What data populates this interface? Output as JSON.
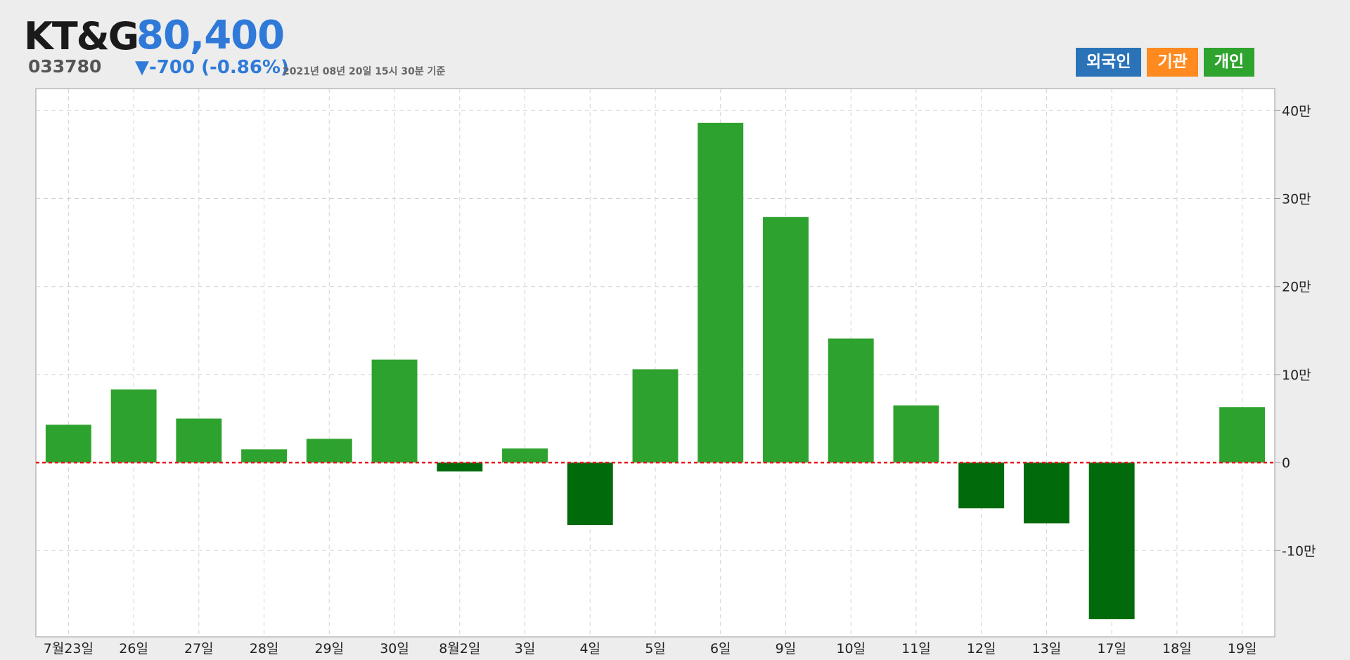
{
  "header": {
    "name": "KT&G",
    "price": "80,400",
    "code": "033780",
    "change": "▼-700 (-0.86%)",
    "time": "2021년 08년 20일 15시 30분 기준"
  },
  "toggles": [
    {
      "label": "외국인",
      "color": "#2a73b9"
    },
    {
      "label": "기관",
      "color": "#ff8a1f"
    },
    {
      "label": "개인",
      "color": "#2ea32e"
    }
  ],
  "chart_data": {
    "type": "bar",
    "series": [
      {
        "values": [
          43000,
          83000,
          50000,
          15000,
          27000,
          117000,
          -10000,
          16000,
          -71000,
          106000,
          386000,
          279000,
          141000,
          65000,
          -52000,
          -69000,
          -178000,
          0,
          63000
        ]
      }
    ],
    "categories": [
      "7월23일",
      "26일",
      "27일",
      "28일",
      "29일",
      "30일",
      "8월2일",
      "3일",
      "4일",
      "5일",
      "6일",
      "9일",
      "10일",
      "11일",
      "12일",
      "13일",
      "17일",
      "18일",
      "19일"
    ],
    "y_ticks": [
      {
        "value": 400000,
        "label": "40만"
      },
      {
        "value": 300000,
        "label": "30만"
      },
      {
        "value": 200000,
        "label": "20만"
      },
      {
        "value": 100000,
        "label": "10만"
      },
      {
        "value": 0,
        "label": "0"
      },
      {
        "value": -100000,
        "label": "-10만"
      }
    ],
    "ylim": [
      -198000,
      425000
    ],
    "grid": true,
    "colors": {
      "positive": "#2ea22e",
      "negative": "#016a0a",
      "zero_line": "#e8111f"
    }
  }
}
